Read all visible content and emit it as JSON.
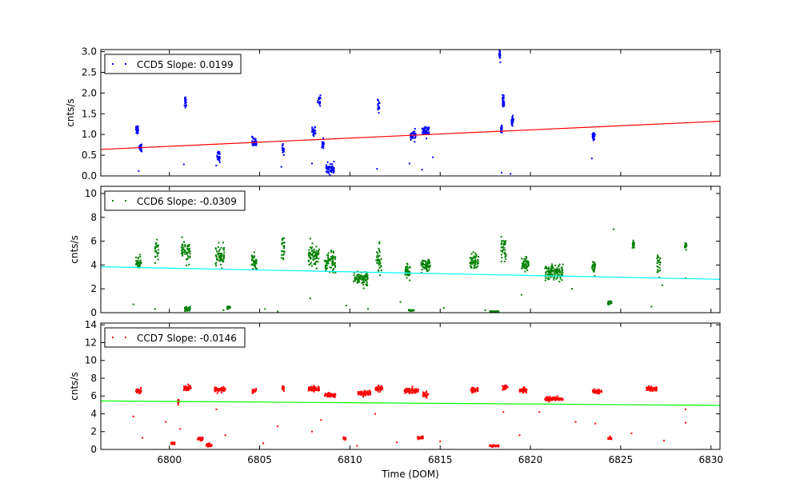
{
  "chart_data": {
    "type": "scatter",
    "xlabel": "Time (DOM)",
    "xlim": [
      6796.2,
      6830.5
    ],
    "xticks": [
      6800,
      6805,
      6810,
      6815,
      6820,
      6825,
      6830
    ],
    "xtick_labels": [
      "6800",
      "6805",
      "6810",
      "6815",
      "6820",
      "6825",
      "6830"
    ],
    "panels": [
      {
        "name": "CCD5",
        "ylabel": "cnts/s",
        "ylim": [
          0,
          3.05
        ],
        "yticks": [
          0.0,
          0.5,
          1.0,
          1.5,
          2.0,
          2.5,
          3.0
        ],
        "ytick_labels": [
          "0.0",
          "0.5",
          "1.0",
          "1.5",
          "2.0",
          "2.5",
          "3.0"
        ],
        "legend": "CCD5 Slope: 0.0199",
        "point_color": "#0000ff",
        "fit_color": "#ff0000",
        "fit": {
          "x0": 6796.2,
          "y0": 0.64,
          "x1": 6830.5,
          "y1": 1.32
        },
        "clusters": [
          {
            "x": 6798.2,
            "y": 1.12,
            "w": 0.15
          },
          {
            "x": 6798.4,
            "y": 0.7,
            "w": 0.15
          },
          {
            "x": 6800.9,
            "y": 1.8,
            "w": 0.12
          },
          {
            "x": 6802.7,
            "y": 0.47,
            "w": 0.2
          },
          {
            "x": 6804.7,
            "y": 0.82,
            "w": 0.25
          },
          {
            "x": 6806.3,
            "y": 0.64,
            "w": 0.1
          },
          {
            "x": 6808.0,
            "y": 1.08,
            "w": 0.2
          },
          {
            "x": 6808.3,
            "y": 1.83,
            "w": 0.15
          },
          {
            "x": 6808.5,
            "y": 0.78,
            "w": 0.1
          },
          {
            "x": 6808.9,
            "y": 0.17,
            "w": 0.5
          },
          {
            "x": 6811.6,
            "y": 1.68,
            "w": 0.12
          },
          {
            "x": 6813.5,
            "y": 0.97,
            "w": 0.3
          },
          {
            "x": 6814.2,
            "y": 1.08,
            "w": 0.4
          },
          {
            "x": 6818.4,
            "y": 1.12,
            "w": 0.08
          },
          {
            "x": 6818.5,
            "y": 1.82,
            "w": 0.1
          },
          {
            "x": 6818.3,
            "y": 2.9,
            "w": 0.06
          },
          {
            "x": 6819.0,
            "y": 1.32,
            "w": 0.12
          },
          {
            "x": 6823.5,
            "y": 0.97,
            "w": 0.15
          }
        ],
        "outliers": [
          [
            6798.3,
            0.12
          ],
          [
            6800.8,
            0.28
          ],
          [
            6802.6,
            0.25
          ],
          [
            6806.2,
            0.22
          ],
          [
            6807.9,
            0.3
          ],
          [
            6811.5,
            0.17
          ],
          [
            6813.3,
            0.3
          ],
          [
            6814.0,
            0.15
          ],
          [
            6818.4,
            0.08
          ],
          [
            6818.9,
            0.05
          ],
          [
            6823.4,
            0.42
          ],
          [
            6814.6,
            0.45
          ]
        ]
      },
      {
        "name": "CCD6",
        "ylabel": "cnts/s",
        "ylim": [
          0,
          10.6
        ],
        "yticks": [
          0,
          2,
          4,
          6,
          8,
          10
        ],
        "ytick_labels": [
          "0",
          "2",
          "4",
          "6",
          "8",
          "10"
        ],
        "legend": "CCD6 Slope: -0.0309",
        "point_color": "#008000",
        "fit_color": "#00ffff",
        "fit": {
          "x0": 6796.2,
          "y0": 3.85,
          "x1": 6830.5,
          "y1": 2.8
        },
        "clusters": [
          {
            "x": 6798.3,
            "y": 4.2,
            "w": 0.3,
            "s": 0.7
          },
          {
            "x": 6800.9,
            "y": 5.1,
            "w": 0.5,
            "s": 0.8
          },
          {
            "x": 6802.8,
            "y": 4.8,
            "w": 0.5,
            "s": 0.9
          },
          {
            "x": 6804.7,
            "y": 4.2,
            "w": 0.3,
            "s": 0.7
          },
          {
            "x": 6806.3,
            "y": 5.5,
            "w": 0.2,
            "s": 1.0
          },
          {
            "x": 6808.0,
            "y": 4.8,
            "w": 0.6,
            "s": 0.9
          },
          {
            "x": 6808.9,
            "y": 4.2,
            "w": 0.6,
            "s": 0.8
          },
          {
            "x": 6810.6,
            "y": 2.9,
            "w": 0.8,
            "s": 0.6
          },
          {
            "x": 6811.6,
            "y": 4.5,
            "w": 0.3,
            "s": 1.2
          },
          {
            "x": 6813.2,
            "y": 3.5,
            "w": 0.3,
            "s": 0.6
          },
          {
            "x": 6814.2,
            "y": 3.9,
            "w": 0.5,
            "s": 0.6
          },
          {
            "x": 6816.9,
            "y": 4.3,
            "w": 0.5,
            "s": 0.7
          },
          {
            "x": 6818.5,
            "y": 5.3,
            "w": 0.3,
            "s": 1.0
          },
          {
            "x": 6819.7,
            "y": 4.0,
            "w": 0.4,
            "s": 0.6
          },
          {
            "x": 6821.3,
            "y": 3.4,
            "w": 1.0,
            "s": 0.6
          },
          {
            "x": 6823.5,
            "y": 3.8,
            "w": 0.2,
            "s": 0.6
          },
          {
            "x": 6825.7,
            "y": 5.6,
            "w": 0.1,
            "s": 0.4
          },
          {
            "x": 6827.1,
            "y": 4.0,
            "w": 0.2,
            "s": 0.8
          },
          {
            "x": 6828.6,
            "y": 5.6,
            "w": 0.1,
            "s": 0.3
          },
          {
            "x": 6799.3,
            "y": 5.3,
            "w": 0.2,
            "s": 0.8
          },
          {
            "x": 6803.3,
            "y": 0.45,
            "w": 0.2,
            "s": 0.1
          },
          {
            "x": 6813.4,
            "y": 0.2,
            "w": 0.3,
            "s": 0.05
          },
          {
            "x": 6818.0,
            "y": 0.08,
            "w": 0.5,
            "s": 0.05
          },
          {
            "x": 6824.4,
            "y": 0.8,
            "w": 0.2,
            "s": 0.2
          },
          {
            "x": 6801.0,
            "y": 0.3,
            "w": 0.3,
            "s": 0.2
          }
        ],
        "outliers": [
          [
            6798.0,
            0.7
          ],
          [
            6799.2,
            0.3
          ],
          [
            6803.0,
            0.2
          ],
          [
            6805.3,
            0.3
          ],
          [
            6806.0,
            0.1
          ],
          [
            6807.8,
            1.2
          ],
          [
            6809.8,
            0.6
          ],
          [
            6811.0,
            0.3
          ],
          [
            6812.8,
            0.9
          ],
          [
            6815.2,
            0.4
          ],
          [
            6817.5,
            0.2
          ],
          [
            6819.5,
            1.5
          ],
          [
            6822.3,
            2.0
          ],
          [
            6824.6,
            7.0
          ],
          [
            6826.7,
            0.5
          ],
          [
            6827.3,
            2.3
          ],
          [
            6828.6,
            2.9
          ]
        ]
      },
      {
        "name": "CCD7",
        "ylabel": "cnts/s",
        "ylim": [
          0,
          14.2
        ],
        "yticks": [
          0,
          2,
          4,
          6,
          8,
          10,
          12,
          14
        ],
        "ytick_labels": [
          "0",
          "2",
          "4",
          "6",
          "8",
          "10",
          "12",
          "14"
        ],
        "legend": "CCD7 Slope: -0.0146",
        "point_color": "#ff0000",
        "fit_color": "#00ff00",
        "fit": {
          "x0": 6796.2,
          "y0": 5.45,
          "x1": 6830.5,
          "y1": 4.95
        },
        "clusters": [
          {
            "x": 6798.3,
            "y": 6.6,
            "w": 0.3,
            "s": 0.25
          },
          {
            "x": 6801.0,
            "y": 6.9,
            "w": 0.4,
            "s": 0.3
          },
          {
            "x": 6802.8,
            "y": 6.7,
            "w": 0.6,
            "s": 0.3
          },
          {
            "x": 6804.7,
            "y": 6.6,
            "w": 0.2,
            "s": 0.25
          },
          {
            "x": 6806.3,
            "y": 6.9,
            "w": 0.1,
            "s": 0.3
          },
          {
            "x": 6808.0,
            "y": 6.8,
            "w": 0.6,
            "s": 0.3
          },
          {
            "x": 6808.9,
            "y": 6.1,
            "w": 0.6,
            "s": 0.25
          },
          {
            "x": 6810.8,
            "y": 6.3,
            "w": 0.7,
            "s": 0.25
          },
          {
            "x": 6811.6,
            "y": 6.8,
            "w": 0.4,
            "s": 0.3
          },
          {
            "x": 6813.4,
            "y": 6.6,
            "w": 0.8,
            "s": 0.3
          },
          {
            "x": 6814.2,
            "y": 6.2,
            "w": 0.3,
            "s": 0.25
          },
          {
            "x": 6816.9,
            "y": 6.7,
            "w": 0.4,
            "s": 0.25
          },
          {
            "x": 6818.6,
            "y": 7.0,
            "w": 0.3,
            "s": 0.3
          },
          {
            "x": 6819.6,
            "y": 6.7,
            "w": 0.4,
            "s": 0.25
          },
          {
            "x": 6821.3,
            "y": 5.7,
            "w": 1.0,
            "s": 0.2
          },
          {
            "x": 6823.7,
            "y": 6.5,
            "w": 0.5,
            "s": 0.2
          },
          {
            "x": 6826.7,
            "y": 6.8,
            "w": 0.6,
            "s": 0.3
          },
          {
            "x": 6802.2,
            "y": 0.5,
            "w": 0.3,
            "s": 0.15
          },
          {
            "x": 6801.7,
            "y": 1.2,
            "w": 0.3,
            "s": 0.15
          },
          {
            "x": 6800.2,
            "y": 0.7,
            "w": 0.2,
            "s": 0.15
          },
          {
            "x": 6809.7,
            "y": 1.2,
            "w": 0.15,
            "s": 0.15
          },
          {
            "x": 6813.9,
            "y": 1.3,
            "w": 0.3,
            "s": 0.15
          },
          {
            "x": 6818.0,
            "y": 0.4,
            "w": 0.5,
            "s": 0.1
          },
          {
            "x": 6824.4,
            "y": 1.2,
            "w": 0.2,
            "s": 0.15
          },
          {
            "x": 6800.5,
            "y": 5.4,
            "w": 0.05,
            "s": 0.3
          }
        ],
        "outliers": [
          [
            6798.0,
            3.7
          ],
          [
            6798.5,
            1.3
          ],
          [
            6799.8,
            3.1
          ],
          [
            6800.6,
            2.3
          ],
          [
            6802.6,
            4.5
          ],
          [
            6803.1,
            1.6
          ],
          [
            6805.2,
            0.7
          ],
          [
            6806.0,
            2.6
          ],
          [
            6807.9,
            2.0
          ],
          [
            6808.4,
            3.3
          ],
          [
            6810.4,
            0.4
          ],
          [
            6811.4,
            4.0
          ],
          [
            6812.6,
            0.8
          ],
          [
            6815.0,
            0.9
          ],
          [
            6818.5,
            4.2
          ],
          [
            6819.4,
            1.6
          ],
          [
            6820.5,
            4.2
          ],
          [
            6822.5,
            3.1
          ],
          [
            6823.6,
            2.9
          ],
          [
            6825.6,
            1.8
          ],
          [
            6827.4,
            1.0
          ],
          [
            6828.6,
            4.5
          ],
          [
            6828.6,
            3.0
          ]
        ]
      }
    ]
  }
}
